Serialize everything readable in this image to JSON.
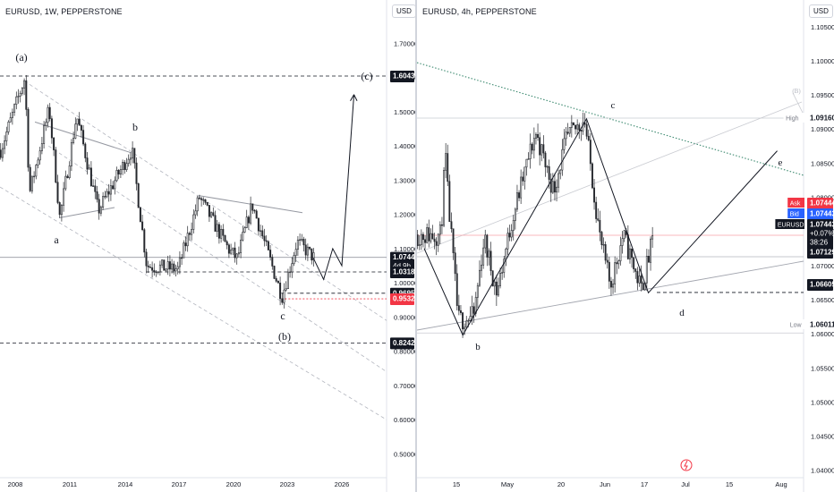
{
  "left": {
    "header": "EURUSD, 1W, PEPPERSTONE",
    "currency": "USD",
    "y_ticks": [
      "1.70000",
      "1.60000",
      "1.50000",
      "1.40000",
      "1.30000",
      "1.20000",
      "1.10000",
      "1.00000",
      "0.90000",
      "0.80000",
      "0.70000",
      "0.60000",
      "0.50000"
    ],
    "x_ticks": [
      "2008",
      "2011",
      "2014",
      "2017",
      "2020",
      "2023",
      "2026"
    ],
    "price_tags": [
      {
        "value": "1.60433",
        "style": "black",
        "lines": [
          "1.60433"
        ]
      },
      {
        "value": "1.07443",
        "style": "black",
        "lines": [
          "1.07443",
          "4d 9h"
        ]
      },
      {
        "value": "1.03184",
        "style": "black",
        "lines": [
          "1.03184"
        ]
      },
      {
        "value": "0.96958",
        "style": "black",
        "lines": [
          "0.96958"
        ]
      },
      {
        "value": "0.95320",
        "style": "red",
        "lines": [
          "0.95320"
        ]
      },
      {
        "value": "0.82425",
        "style": "black",
        "lines": [
          "0.82425"
        ]
      }
    ],
    "wave_labels": [
      "(a)",
      "b",
      "a",
      "c",
      "(b)",
      "(c)"
    ]
  },
  "right": {
    "header": "EURUSD, 4h, PEPPERSTONE",
    "currency": "USD",
    "y_ticks": [
      "1.10500",
      "1.10000",
      "1.09500",
      "1.09000",
      "1.08500",
      "1.08000",
      "1.07500",
      "1.07000",
      "1.06500",
      "1.06000",
      "1.05500",
      "1.05000",
      "1.04500",
      "1.04000"
    ],
    "x_ticks": [
      "15",
      "May",
      "20",
      "Jun",
      "17",
      "Jul",
      "15",
      "Aug"
    ],
    "price_tags": [
      {
        "prefix": "High",
        "lines": [
          "1.09160"
        ],
        "style": "plain"
      },
      {
        "prefix": "Ask",
        "lines": [
          "1.07444"
        ],
        "style": "red"
      },
      {
        "prefix": "Bid",
        "lines": [
          "1.07443"
        ],
        "style": "blue"
      },
      {
        "prefix": "EURUSD",
        "lines": [
          "1.07443",
          "+0.07%",
          "38:26"
        ],
        "style": "black"
      },
      {
        "prefix": "",
        "lines": [
          "1.07129"
        ],
        "style": "black"
      },
      {
        "prefix": "",
        "lines": [
          "1.06605"
        ],
        "style": "black"
      },
      {
        "prefix": "Low",
        "lines": [
          "1.06011"
        ],
        "style": "plain"
      }
    ],
    "wave_labels": [
      "c",
      "b",
      "d",
      "e",
      "(B)"
    ]
  },
  "chart_data": [
    {
      "type": "candlestick",
      "title": "EURUSD, 1W, PEPPERSTONE",
      "ylim": [
        0.46,
        1.75
      ],
      "x": [
        "2008",
        "2011",
        "2014",
        "2017",
        "2020",
        "2023",
        "2026"
      ],
      "key_levels": [
        1.60433,
        1.07443,
        1.03184,
        0.96958,
        0.9532,
        0.82425
      ],
      "price_path": [
        {
          "date": "2006",
          "price": 1.28
        },
        {
          "date": "2007",
          "price": 1.45
        },
        {
          "date": "2008-07",
          "price": 1.6
        },
        {
          "date": "2008-10",
          "price": 1.26
        },
        {
          "date": "2009-11",
          "price": 1.51
        },
        {
          "date": "2010-06",
          "price": 1.19
        },
        {
          "date": "2011-05",
          "price": 1.49
        },
        {
          "date": "2012-07",
          "price": 1.21
        },
        {
          "date": "2014-05",
          "price": 1.39
        },
        {
          "date": "2015-03",
          "price": 1.05
        },
        {
          "date": "2016-12",
          "price": 1.04
        },
        {
          "date": "2018-02",
          "price": 1.25
        },
        {
          "date": "2019-09",
          "price": 1.1
        },
        {
          "date": "2020-03",
          "price": 1.07
        },
        {
          "date": "2021-01",
          "price": 1.23
        },
        {
          "date": "2022-09",
          "price": 0.96
        },
        {
          "date": "2023-07",
          "price": 1.12
        },
        {
          "date": "2024-06",
          "price": 1.07443
        }
      ],
      "projection": [
        {
          "date": "2024-06",
          "price": 1.07443
        },
        {
          "date": "2025-01",
          "price": 1.01
        },
        {
          "date": "2025-07",
          "price": 1.1
        },
        {
          "date": "2026-01",
          "price": 1.05
        },
        {
          "date": "2026-09",
          "price": 1.55
        }
      ]
    },
    {
      "type": "candlestick",
      "title": "EURUSD, 4h, PEPPERSTONE",
      "ylim": [
        1.0375,
        1.1085
      ],
      "x": [
        "15",
        "May",
        "20",
        "Jun",
        "17",
        "Jul",
        "15",
        "Aug"
      ],
      "key_levels": [
        1.0916,
        1.07444,
        1.07443,
        1.07129,
        1.06605,
        1.06011
      ],
      "price_path": [
        {
          "date": "Apr 09",
          "price": 1.0725
        },
        {
          "date": "Apr 11",
          "price": 1.0865
        },
        {
          "date": "Apr 12",
          "price": 1.08
        },
        {
          "date": "Apr 16",
          "price": 1.062
        },
        {
          "date": "Apr 22",
          "price": 1.0625
        },
        {
          "date": "Apr 26",
          "price": 1.074
        },
        {
          "date": "May 01",
          "price": 1.066
        },
        {
          "date": "May 07",
          "price": 1.077
        },
        {
          "date": "May 16",
          "price": 1.0895
        },
        {
          "date": "May 23",
          "price": 1.081
        },
        {
          "date": "May 28",
          "price": 1.0885
        },
        {
          "date": "Jun 04",
          "price": 1.0915
        },
        {
          "date": "Jun 10",
          "price": 1.074
        },
        {
          "date": "Jun 14",
          "price": 1.067
        },
        {
          "date": "Jun 19",
          "price": 1.0745
        },
        {
          "date": "Jun 26",
          "price": 1.0665
        },
        {
          "date": "Jul 01",
          "price": 1.0745
        }
      ],
      "wave_path": [
        {
          "date": "Apr 03",
          "price": 1.0725
        },
        {
          "date": "Apr 18",
          "price": 1.0598
        },
        {
          "date": "Jun 05",
          "price": 1.0915
        },
        {
          "date": "Jun 29",
          "price": 1.066
        },
        {
          "date": "Aug 18",
          "price": 1.0868
        }
      ]
    }
  ]
}
